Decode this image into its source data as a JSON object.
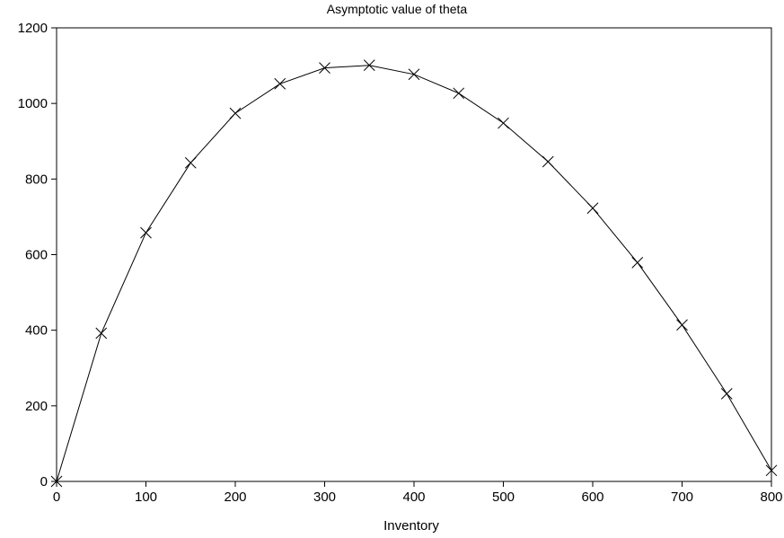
{
  "chart_data": {
    "type": "line",
    "title": "Asymptotic value of theta",
    "xlabel": "Inventory",
    "ylabel": "",
    "xlim": [
      0,
      800
    ],
    "ylim": [
      0,
      1200
    ],
    "x_ticks": [
      0,
      100,
      200,
      300,
      400,
      500,
      600,
      700,
      800
    ],
    "y_ticks": [
      0,
      200,
      400,
      600,
      800,
      1000,
      1200
    ],
    "grid": false,
    "marker": "x",
    "line_color": "#000000",
    "series": [
      {
        "x": [
          0,
          50,
          100,
          150,
          200,
          250,
          300,
          350,
          400,
          450,
          500,
          550,
          600,
          650,
          700,
          750,
          800
        ],
        "values": [
          0,
          392,
          658,
          843,
          974,
          1052,
          1094,
          1101,
          1077,
          1027,
          948,
          846,
          723,
          579,
          414,
          232,
          29
        ]
      }
    ]
  }
}
